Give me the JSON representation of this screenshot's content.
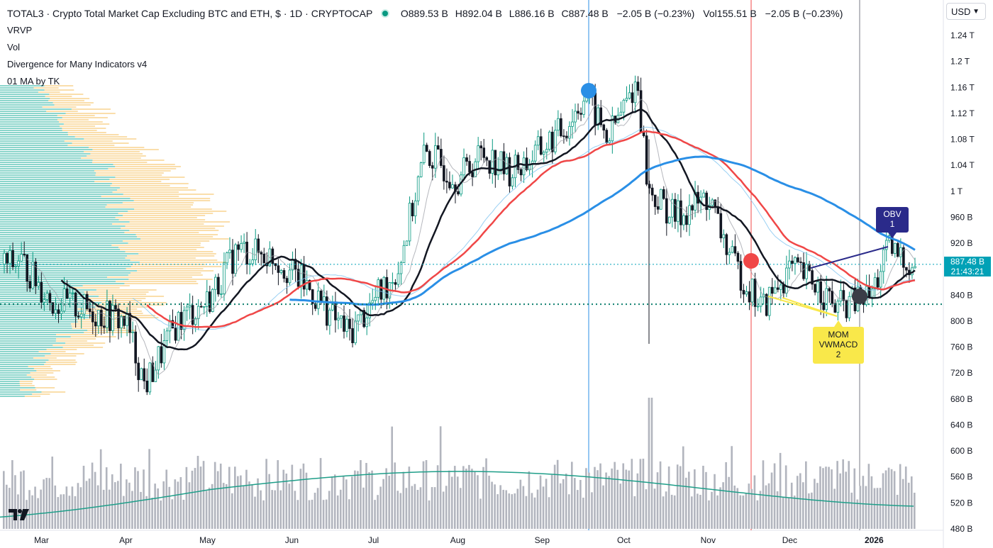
{
  "header": {
    "title": "TOTAL3 · Crypto Total Market Cap Excluding BTC and ETH, $ · 1D · CRYPTOCAP",
    "ohlc": [
      {
        "k": "O",
        "v": "889.53 B"
      },
      {
        "k": "H",
        "v": "892.04 B"
      },
      {
        "k": "L",
        "v": "886.16 B"
      },
      {
        "k": "C",
        "v": "887.48 B"
      }
    ],
    "change": "−2.05 B (−0.23%)",
    "vol_label": "Vol",
    "vol_value": "155.51 B",
    "vol_change": "−2.05 B (−0.23%)",
    "indicators": [
      "VRVP",
      "Vol",
      "Divergence for Many Indicators v4",
      "01 MA by TK"
    ]
  },
  "controls": {
    "currency": "USD"
  },
  "price_axis": {
    "ticks": [
      "1.24 T",
      "1.2 T",
      "1.16 T",
      "1.12 T",
      "1.08 T",
      "1.04 T",
      "1 T",
      "960 B",
      "920 B",
      "880 B",
      "840 B",
      "800 B",
      "760 B",
      "720 B",
      "680 B",
      "640 B",
      "600 B",
      "560 B",
      "520 B",
      "480 B"
    ],
    "tick_values": [
      1240,
      1200,
      1160,
      1120,
      1080,
      1040,
      1000,
      960,
      920,
      880,
      840,
      800,
      760,
      720,
      680,
      640,
      600,
      560,
      520,
      480
    ]
  },
  "time_axis": {
    "labels": [
      "Mar",
      "Apr",
      "May",
      "Jun",
      "Jul",
      "Aug",
      "Sep",
      "Oct",
      "Nov",
      "Dec",
      "2026"
    ],
    "bold": [
      "2026"
    ]
  },
  "last_price": {
    "value": "887.48 B",
    "countdown": "21:43:21"
  },
  "annotations": {
    "obv": {
      "line1": "OBV",
      "line2": "1"
    },
    "mom": {
      "line1": "MOM",
      "line2": "VWMACD",
      "line3": "2"
    }
  },
  "colors": {
    "up": "#089981",
    "down": "#131722",
    "ma_black": "#131722",
    "ma_red": "#f04747",
    "ma_blue": "#2a8fe6",
    "vol_bar": "#b2b5be",
    "vol_ma": "#1f9e89",
    "price_line": "#00a1b6",
    "vrvp_teal": "#2bb3a0",
    "vrvp_orange": "#f7c873",
    "obv_box": "#2a2a8a",
    "mom_box": "#f9e84a"
  },
  "chart_data": {
    "type": "candlestick",
    "title": "TOTAL3 · Crypto Total Market Cap Excluding BTC and ETH, $ · 1D · CRYPTOCAP",
    "unit": "B USD",
    "ylim": [
      480,
      1260
    ],
    "x_months": [
      "Mar",
      "Apr",
      "May",
      "Jun",
      "Jul",
      "Aug",
      "Sep",
      "Oct",
      "Nov",
      "Dec",
      "2026"
    ],
    "close_path": [
      [
        "2025-02-20",
        900
      ],
      [
        "2025-03-05",
        830
      ],
      [
        "2025-03-15",
        820
      ],
      [
        "2025-04-01",
        800
      ],
      [
        "2025-04-08",
        700
      ],
      [
        "2025-04-20",
        800
      ],
      [
        "2025-05-01",
        830
      ],
      [
        "2025-05-12",
        910
      ],
      [
        "2025-05-25",
        900
      ],
      [
        "2025-06-05",
        860
      ],
      [
        "2025-06-22",
        780
      ],
      [
        "2025-07-01",
        830
      ],
      [
        "2025-07-10",
        880
      ],
      [
        "2025-07-20",
        1060
      ],
      [
        "2025-08-01",
        1020
      ],
      [
        "2025-08-10",
        1060
      ],
      [
        "2025-08-20",
        1030
      ],
      [
        "2025-08-28",
        1050
      ],
      [
        "2025-09-10",
        1100
      ],
      [
        "2025-09-17",
        1150
      ],
      [
        "2025-09-25",
        1080
      ],
      [
        "2025-10-06",
        1170
      ],
      [
        "2025-10-10",
        1000
      ],
      [
        "2025-10-20",
        960
      ],
      [
        "2025-11-01",
        990
      ],
      [
        "2025-11-10",
        890
      ],
      [
        "2025-11-21",
        820
      ],
      [
        "2025-12-01",
        880
      ],
      [
        "2025-12-10",
        860
      ],
      [
        "2025-12-18",
        820
      ],
      [
        "2025-12-31",
        840
      ],
      [
        "2026-01-06",
        910
      ],
      [
        "2026-01-15",
        887.48
      ]
    ],
    "moving_averages": [
      {
        "name": "MA black",
        "color": "#131722"
      },
      {
        "name": "MA red",
        "color": "#f04747"
      },
      {
        "name": "MA blue",
        "color": "#2a8fe6"
      }
    ],
    "horizontal_levels": [
      887.48,
      826
    ],
    "events": [
      {
        "label": "OBV 1",
        "type": "bearish divergence"
      },
      {
        "label": "MOM VWMACD 2",
        "type": "bullish divergence"
      }
    ]
  }
}
